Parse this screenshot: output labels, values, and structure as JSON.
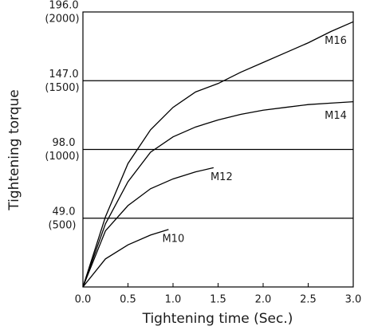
{
  "chart_data": {
    "type": "line",
    "xlabel": "Tightening time (Sec.)",
    "ylabel": "Tightening torque",
    "xlim": [
      0,
      3
    ],
    "xticks": [
      {
        "value": 0,
        "label": "0.0"
      },
      {
        "value": 0.5,
        "label": "0.5"
      },
      {
        "value": 1,
        "label": "1.0"
      },
      {
        "value": 1.5,
        "label": "1.5"
      },
      {
        "value": 2,
        "label": "2.0"
      },
      {
        "value": 2.5,
        "label": "2.5"
      },
      {
        "value": 3,
        "label": "3.0"
      }
    ],
    "ylim": [
      0,
      196
    ],
    "yticks": [
      {
        "value": 49,
        "label": "49.0"
      },
      {
        "value": 98,
        "label": "98.0"
      },
      {
        "value": 147,
        "label": "147.0"
      },
      {
        "value": 196,
        "label": "196.0"
      }
    ],
    "y2lim": [
      0,
      2000
    ],
    "y2ticks": [
      {
        "value": 500,
        "label": "(500)"
      },
      {
        "value": 1000,
        "label": "(1000)"
      },
      {
        "value": 1500,
        "label": "(1500)"
      },
      {
        "value": 2000,
        "label": "(2000)"
      }
    ],
    "grid": true,
    "series": [
      {
        "name": "M16",
        "color": "#000000",
        "x": [
          0,
          0.25,
          0.5,
          0.75,
          1,
          1.25,
          1.5,
          1.75,
          2,
          2.25,
          2.5,
          2.75,
          3
        ],
        "values": [
          0,
          50,
          88,
          112,
          128,
          139,
          145,
          153,
          160,
          167,
          174,
          182,
          189
        ]
      },
      {
        "name": "M14",
        "color": "#000000",
        "x": [
          0,
          0.25,
          0.5,
          0.75,
          1,
          1.25,
          1.5,
          1.75,
          2,
          2.25,
          2.5,
          2.75,
          3
        ],
        "values": [
          0,
          45,
          75,
          96,
          107,
          114,
          119,
          123,
          126,
          128,
          130,
          131,
          132
        ]
      },
      {
        "name": "M12",
        "color": "#000000",
        "x": [
          0,
          0.25,
          0.5,
          0.75,
          1,
          1.25,
          1.45
        ],
        "values": [
          0,
          40,
          58,
          70,
          77,
          82,
          85
        ]
      },
      {
        "name": "M10",
        "color": "#000000",
        "x": [
          0,
          0.25,
          0.5,
          0.75,
          0.95
        ],
        "values": [
          0,
          20,
          30,
          37,
          41
        ]
      }
    ]
  }
}
